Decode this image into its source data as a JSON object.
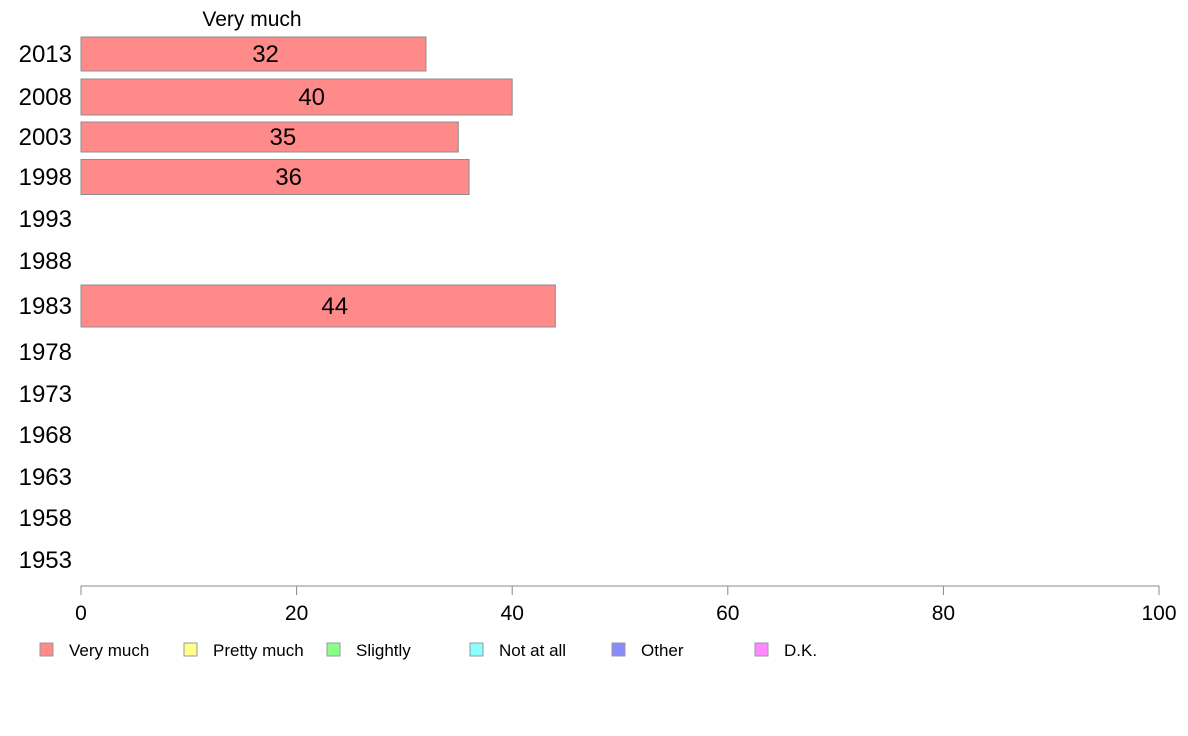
{
  "chart_data": {
    "type": "bar",
    "orientation": "horizontal",
    "series_title": "Very much",
    "categories": [
      "2013",
      "2008",
      "2003",
      "1998",
      "1993",
      "1988",
      "1983",
      "1978",
      "1973",
      "1968",
      "1963",
      "1958",
      "1953"
    ],
    "series": [
      {
        "name": "Very much",
        "color": "#FF8A8A",
        "values": [
          32,
          40,
          35,
          36,
          null,
          null,
          44,
          null,
          null,
          null,
          null,
          null,
          null
        ]
      }
    ],
    "xlim": [
      0,
      100
    ],
    "xticks": [
      0,
      20,
      40,
      60,
      80,
      100
    ],
    "grid": false,
    "legend": {
      "placement": "bottom",
      "items": [
        {
          "label": "Very much",
          "color": "#FF8A8A"
        },
        {
          "label": "Pretty much",
          "color": "#FFFF8A"
        },
        {
          "label": "Slightly",
          "color": "#8AFF8A"
        },
        {
          "label": "Not at all",
          "color": "#8AFFFF"
        },
        {
          "label": "Other",
          "color": "#8A8AFF"
        },
        {
          "label": "D.K.",
          "color": "#FF8AFF"
        }
      ]
    }
  }
}
